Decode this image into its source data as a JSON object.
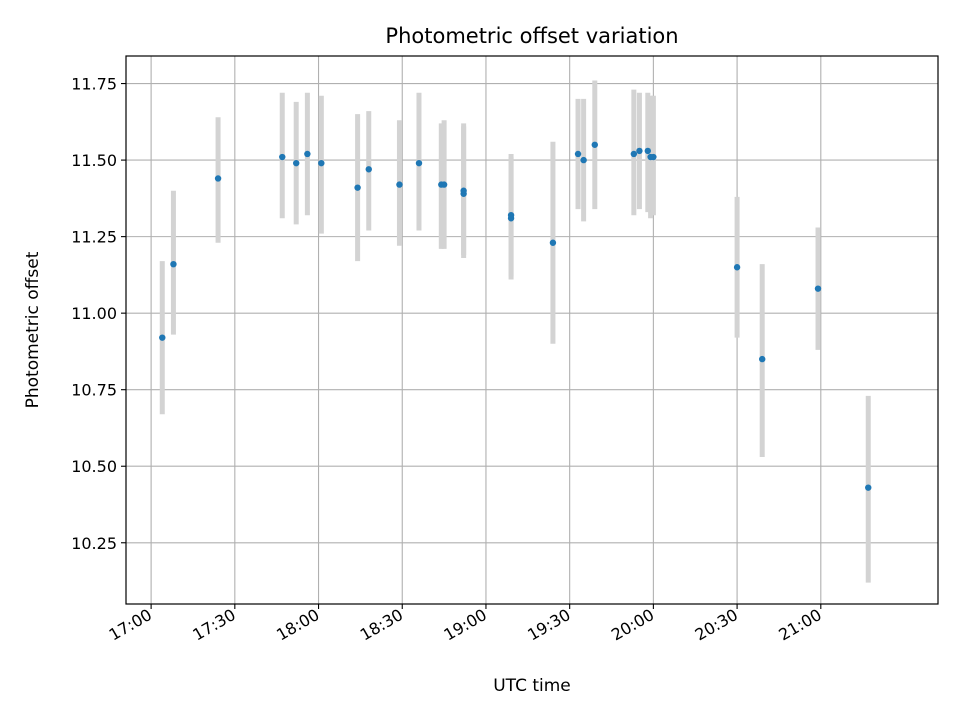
{
  "chart_data": {
    "type": "scatter",
    "title": "Photometric offset variation",
    "xlabel": "UTC time",
    "ylabel": "Photometric offset",
    "x_axis": "time",
    "xlim": [
      "16:51",
      "21:42"
    ],
    "ylim": [
      10.05,
      11.84
    ],
    "xticks": [
      "17:00",
      "17:30",
      "18:00",
      "18:30",
      "19:00",
      "19:30",
      "20:00",
      "20:30",
      "21:00"
    ],
    "yticks": [
      10.25,
      10.5,
      10.75,
      11.0,
      11.25,
      11.5,
      11.75
    ],
    "ytick_labels": [
      "10.25",
      "10.50",
      "10.75",
      "11.00",
      "11.25",
      "11.50",
      "11.75"
    ],
    "grid": true,
    "point_color": "#1f77b4",
    "errorbar_color": "#d3d3d3",
    "series": [
      {
        "points": [
          {
            "x": "17:04",
            "y": 10.92,
            "low": 10.67,
            "high": 11.17
          },
          {
            "x": "17:08",
            "y": 11.16,
            "low": 10.93,
            "high": 11.4
          },
          {
            "x": "17:24",
            "y": 11.44,
            "low": 11.23,
            "high": 11.64
          },
          {
            "x": "17:47",
            "y": 11.51,
            "low": 11.31,
            "high": 11.72
          },
          {
            "x": "17:52",
            "y": 11.49,
            "low": 11.29,
            "high": 11.69
          },
          {
            "x": "17:56",
            "y": 11.52,
            "low": 11.32,
            "high": 11.72
          },
          {
            "x": "18:01",
            "y": 11.49,
            "low": 11.26,
            "high": 11.71
          },
          {
            "x": "18:14",
            "y": 11.41,
            "low": 11.17,
            "high": 11.65
          },
          {
            "x": "18:18",
            "y": 11.47,
            "low": 11.27,
            "high": 11.66
          },
          {
            "x": "18:29",
            "y": 11.42,
            "low": 11.22,
            "high": 11.63
          },
          {
            "x": "18:36",
            "y": 11.49,
            "low": 11.27,
            "high": 11.72
          },
          {
            "x": "18:44",
            "y": 11.42,
            "low": 11.21,
            "high": 11.62
          },
          {
            "x": "18:45",
            "y": 11.42,
            "low": 11.21,
            "high": 11.63
          },
          {
            "x": "18:52",
            "y": 11.39,
            "low": 11.18,
            "high": 11.61
          },
          {
            "x": "18:52",
            "y": 11.4,
            "low": 11.19,
            "high": 11.62
          },
          {
            "x": "19:09",
            "y": 11.32,
            "low": 11.11,
            "high": 11.52
          },
          {
            "x": "19:09",
            "y": 11.31,
            "low": 11.12,
            "high": 11.51
          },
          {
            "x": "19:24",
            "y": 11.23,
            "low": 10.9,
            "high": 11.56
          },
          {
            "x": "19:33",
            "y": 11.52,
            "low": 11.34,
            "high": 11.7
          },
          {
            "x": "19:35",
            "y": 11.5,
            "low": 11.3,
            "high": 11.7
          },
          {
            "x": "19:39",
            "y": 11.55,
            "low": 11.34,
            "high": 11.76
          },
          {
            "x": "19:53",
            "y": 11.52,
            "low": 11.32,
            "high": 11.73
          },
          {
            "x": "19:55",
            "y": 11.53,
            "low": 11.34,
            "high": 11.72
          },
          {
            "x": "19:58",
            "y": 11.53,
            "low": 11.33,
            "high": 11.72
          },
          {
            "x": "19:59",
            "y": 11.51,
            "low": 11.31,
            "high": 11.71
          },
          {
            "x": "20:00",
            "y": 11.51,
            "low": 11.32,
            "high": 11.71
          },
          {
            "x": "20:30",
            "y": 11.15,
            "low": 10.92,
            "high": 11.38
          },
          {
            "x": "20:39",
            "y": 10.85,
            "low": 10.53,
            "high": 11.16
          },
          {
            "x": "20:59",
            "y": 11.08,
            "low": 10.88,
            "high": 11.28
          },
          {
            "x": "21:17",
            "y": 10.43,
            "low": 10.12,
            "high": 10.73
          }
        ]
      }
    ]
  }
}
